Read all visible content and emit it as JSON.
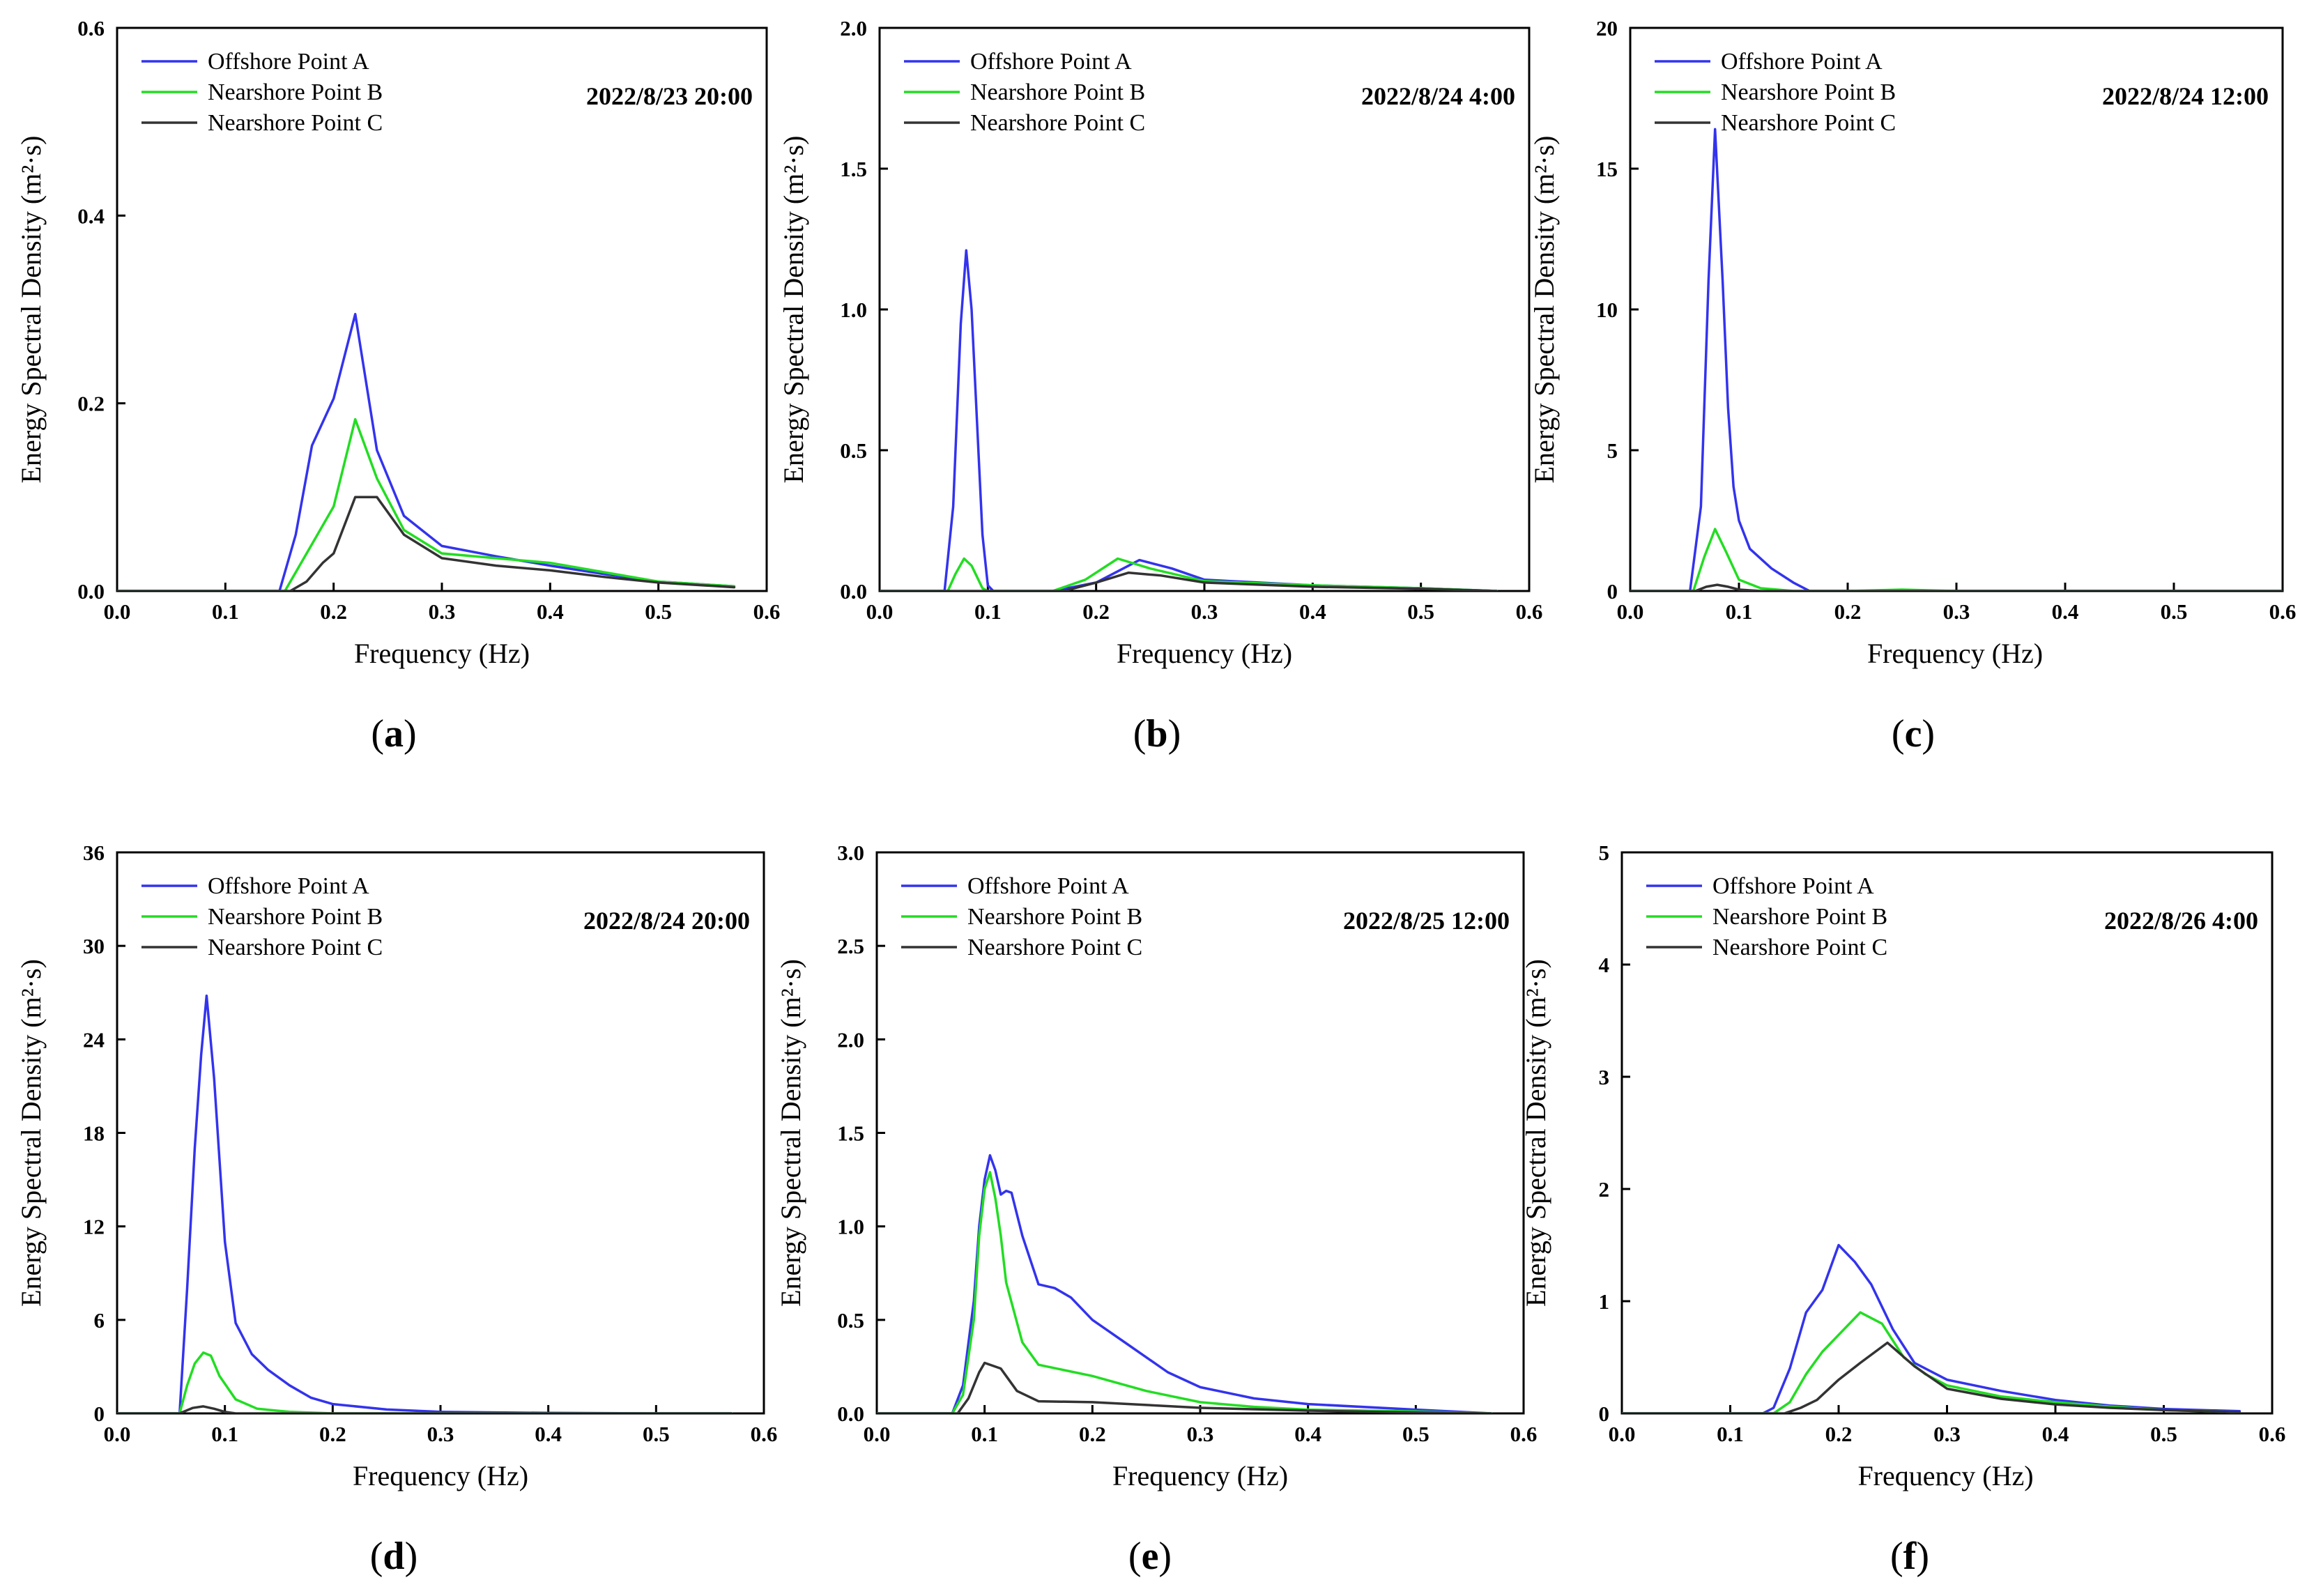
{
  "figure": {
    "panel_letters": [
      "(a)",
      "(b)",
      "(c)",
      "(d)",
      "(e)",
      "(f)"
    ],
    "colors": {
      "offshore_a": "#3333ee",
      "nearshore_b": "#22dd22",
      "nearshore_c": "#333333"
    }
  },
  "chart_data": [
    {
      "type": "line",
      "panel": "(a)",
      "annotation": "2022/8/23 20:00",
      "xlabel": "Frequency (Hz)",
      "ylabel": "Energy Spectral Density (m²·s)",
      "xlim": [
        0.0,
        0.6
      ],
      "ylim": [
        0.0,
        0.6
      ],
      "xticks": [
        "0.0",
        "0.1",
        "0.2",
        "0.3",
        "0.4",
        "0.5",
        "0.6"
      ],
      "yticks": [
        "0.0",
        "0.2",
        "0.4",
        "0.6"
      ],
      "legend": [
        "Offshore Point A",
        "Nearshore Point B",
        "Nearshore Point C"
      ],
      "series": [
        {
          "name": "Offshore Point A",
          "color": "#3333ee",
          "x": [
            0.0,
            0.15,
            0.165,
            0.18,
            0.2,
            0.22,
            0.24,
            0.265,
            0.3,
            0.35,
            0.4,
            0.45,
            0.5,
            0.57
          ],
          "y": [
            0.0,
            0.0,
            0.06,
            0.155,
            0.205,
            0.295,
            0.15,
            0.08,
            0.048,
            0.037,
            0.027,
            0.018,
            0.01,
            0.005
          ]
        },
        {
          "name": "Nearshore Point B",
          "color": "#22dd22",
          "x": [
            0.0,
            0.155,
            0.17,
            0.185,
            0.2,
            0.22,
            0.24,
            0.265,
            0.3,
            0.35,
            0.4,
            0.45,
            0.5,
            0.57
          ],
          "y": [
            0.0,
            0.0,
            0.03,
            0.06,
            0.09,
            0.183,
            0.12,
            0.065,
            0.04,
            0.035,
            0.03,
            0.02,
            0.01,
            0.005
          ]
        },
        {
          "name": "Nearshore Point C",
          "color": "#333333",
          "x": [
            0.0,
            0.16,
            0.175,
            0.19,
            0.2,
            0.22,
            0.24,
            0.265,
            0.3,
            0.35,
            0.4,
            0.45,
            0.5,
            0.57
          ],
          "y": [
            0.0,
            0.0,
            0.01,
            0.03,
            0.04,
            0.1,
            0.1,
            0.06,
            0.035,
            0.027,
            0.022,
            0.015,
            0.009,
            0.004
          ]
        }
      ]
    },
    {
      "type": "line",
      "panel": "(b)",
      "annotation": "2022/8/24 4:00",
      "xlabel": "Frequency (Hz)",
      "ylabel": "Energy Spectral Density (m²·s)",
      "xlim": [
        0.0,
        0.6
      ],
      "ylim": [
        0.0,
        2.0
      ],
      "xticks": [
        "0.0",
        "0.1",
        "0.2",
        "0.3",
        "0.4",
        "0.5",
        "0.6"
      ],
      "yticks": [
        "0.0",
        "0.5",
        "1.0",
        "1.5",
        "2.0"
      ],
      "legend": [
        "Offshore Point A",
        "Nearshore Point B",
        "Nearshore Point C"
      ],
      "series": [
        {
          "name": "Offshore Point A",
          "color": "#3333ee",
          "x": [
            0.0,
            0.06,
            0.068,
            0.075,
            0.08,
            0.085,
            0.09,
            0.095,
            0.1,
            0.105,
            0.16,
            0.2,
            0.24,
            0.27,
            0.3,
            0.4,
            0.5,
            0.57
          ],
          "y": [
            0.0,
            0.0,
            0.3,
            0.95,
            1.21,
            1.0,
            0.6,
            0.2,
            0.02,
            0.0,
            0.0,
            0.03,
            0.11,
            0.08,
            0.04,
            0.02,
            0.01,
            0.0
          ]
        },
        {
          "name": "Nearshore Point B",
          "color": "#22dd22",
          "x": [
            0.0,
            0.063,
            0.07,
            0.078,
            0.085,
            0.095,
            0.1,
            0.16,
            0.19,
            0.22,
            0.25,
            0.3,
            0.4,
            0.5,
            0.57
          ],
          "y": [
            0.0,
            0.0,
            0.06,
            0.115,
            0.09,
            0.01,
            0.0,
            0.0,
            0.04,
            0.115,
            0.08,
            0.035,
            0.02,
            0.01,
            0.0
          ]
        },
        {
          "name": "Nearshore Point C",
          "color": "#333333",
          "x": [
            0.0,
            0.17,
            0.2,
            0.23,
            0.26,
            0.3,
            0.4,
            0.5,
            0.57
          ],
          "y": [
            0.0,
            0.0,
            0.03,
            0.065,
            0.055,
            0.03,
            0.015,
            0.008,
            0.0
          ]
        }
      ]
    },
    {
      "type": "line",
      "panel": "(c)",
      "annotation": "2022/8/24 12:00",
      "xlabel": "Frequency (Hz)",
      "ylabel": "Energy Spectral Density (m²·s)",
      "xlim": [
        0.0,
        0.6
      ],
      "ylim": [
        0,
        20
      ],
      "xticks": [
        "0.0",
        "0.1",
        "0.2",
        "0.3",
        "0.4",
        "0.5",
        "0.6"
      ],
      "yticks": [
        "0",
        "5",
        "10",
        "15",
        "20"
      ],
      "legend": [
        "Offshore Point A",
        "Nearshore Point B",
        "Nearshore Point C"
      ],
      "series": [
        {
          "name": "Offshore Point A",
          "color": "#3333ee",
          "x": [
            0.0,
            0.055,
            0.065,
            0.072,
            0.078,
            0.085,
            0.09,
            0.095,
            0.1,
            0.11,
            0.13,
            0.15,
            0.165,
            0.2,
            0.3,
            0.6
          ],
          "y": [
            0.0,
            0.0,
            3.0,
            11.0,
            16.4,
            11.0,
            6.5,
            3.7,
            2.5,
            1.5,
            0.8,
            0.3,
            0.0,
            0.0,
            0.0,
            0.0
          ]
        },
        {
          "name": "Nearshore Point B",
          "color": "#22dd22",
          "x": [
            0.0,
            0.058,
            0.068,
            0.078,
            0.088,
            0.1,
            0.12,
            0.15,
            0.2,
            0.25,
            0.3,
            0.6
          ],
          "y": [
            0.0,
            0.0,
            1.2,
            2.2,
            1.4,
            0.4,
            0.1,
            0.0,
            0.0,
            0.05,
            0.0,
            0.0
          ]
        },
        {
          "name": "Nearshore Point C",
          "color": "#333333",
          "x": [
            0.0,
            0.06,
            0.07,
            0.08,
            0.09,
            0.1,
            0.12,
            0.6
          ],
          "y": [
            0.0,
            0.0,
            0.15,
            0.22,
            0.15,
            0.05,
            0.0,
            0.0
          ]
        }
      ]
    },
    {
      "type": "line",
      "panel": "(d)",
      "annotation": "2022/8/24 20:00",
      "xlabel": "Frequency (Hz)",
      "ylabel": "Energy Spectral Density (m²·s)",
      "xlim": [
        0.0,
        0.6
      ],
      "ylim": [
        0,
        36
      ],
      "xticks": [
        "0.0",
        "0.1",
        "0.2",
        "0.3",
        "0.4",
        "0.5",
        "0.6"
      ],
      "yticks": [
        "0",
        "6",
        "12",
        "18",
        "24",
        "30",
        "36"
      ],
      "legend": [
        "Offshore Point A",
        "Nearshore Point B",
        "Nearshore Point C"
      ],
      "series": [
        {
          "name": "Offshore Point A",
          "color": "#3333ee",
          "x": [
            0.0,
            0.058,
            0.065,
            0.072,
            0.078,
            0.083,
            0.09,
            0.1,
            0.11,
            0.125,
            0.14,
            0.16,
            0.18,
            0.2,
            0.25,
            0.3,
            0.4,
            0.5,
            0.57
          ],
          "y": [
            0.0,
            0.0,
            8.0,
            17.0,
            23.0,
            26.8,
            21.5,
            11.0,
            5.8,
            3.8,
            2.8,
            1.8,
            1.0,
            0.6,
            0.25,
            0.1,
            0.03,
            0.0,
            0.0
          ]
        },
        {
          "name": "Nearshore Point B",
          "color": "#22dd22",
          "x": [
            0.0,
            0.058,
            0.065,
            0.072,
            0.08,
            0.087,
            0.095,
            0.11,
            0.13,
            0.16,
            0.2,
            0.3,
            0.57
          ],
          "y": [
            0.0,
            0.0,
            1.8,
            3.2,
            3.9,
            3.7,
            2.4,
            0.9,
            0.3,
            0.1,
            0.0,
            0.0,
            0.0
          ]
        },
        {
          "name": "Nearshore Point C",
          "color": "#333333",
          "x": [
            0.0,
            0.058,
            0.07,
            0.08,
            0.09,
            0.1,
            0.11,
            0.57
          ],
          "y": [
            0.0,
            0.0,
            0.35,
            0.45,
            0.3,
            0.1,
            0.0,
            0.0
          ]
        }
      ]
    },
    {
      "type": "line",
      "panel": "(e)",
      "annotation": "2022/8/25 12:00",
      "xlabel": "Frequency (Hz)",
      "ylabel": "Energy Spectral Density (m²·s)",
      "xlim": [
        0.0,
        0.6
      ],
      "ylim": [
        0.0,
        3.0
      ],
      "xticks": [
        "0.0",
        "0.1",
        "0.2",
        "0.3",
        "0.4",
        "0.5",
        "0.6"
      ],
      "yticks": [
        "0.0",
        "0.5",
        "1.0",
        "1.5",
        "2.0",
        "2.5",
        "3.0"
      ],
      "legend": [
        "Offshore Point A",
        "Nearshore Point B",
        "Nearshore Point C"
      ],
      "series": [
        {
          "name": "Offshore Point A",
          "color": "#3333ee",
          "x": [
            0.0,
            0.07,
            0.08,
            0.09,
            0.095,
            0.1,
            0.105,
            0.11,
            0.115,
            0.12,
            0.125,
            0.135,
            0.15,
            0.165,
            0.18,
            0.2,
            0.23,
            0.27,
            0.3,
            0.35,
            0.4,
            0.5,
            0.57
          ],
          "y": [
            0.0,
            0.0,
            0.15,
            0.6,
            1.0,
            1.25,
            1.38,
            1.3,
            1.17,
            1.19,
            1.18,
            0.95,
            0.69,
            0.67,
            0.62,
            0.5,
            0.38,
            0.22,
            0.14,
            0.08,
            0.05,
            0.02,
            0.0
          ]
        },
        {
          "name": "Nearshore Point B",
          "color": "#22dd22",
          "x": [
            0.0,
            0.07,
            0.08,
            0.09,
            0.095,
            0.1,
            0.105,
            0.11,
            0.115,
            0.12,
            0.135,
            0.15,
            0.2,
            0.25,
            0.3,
            0.35,
            0.4,
            0.5,
            0.57
          ],
          "y": [
            0.0,
            0.0,
            0.1,
            0.5,
            0.95,
            1.2,
            1.29,
            1.15,
            0.95,
            0.7,
            0.38,
            0.26,
            0.2,
            0.12,
            0.06,
            0.035,
            0.02,
            0.01,
            0.0
          ]
        },
        {
          "name": "Nearshore Point C",
          "color": "#333333",
          "x": [
            0.0,
            0.075,
            0.085,
            0.095,
            0.1,
            0.11,
            0.115,
            0.12,
            0.13,
            0.15,
            0.2,
            0.25,
            0.3,
            0.4,
            0.5,
            0.57
          ],
          "y": [
            0.0,
            0.0,
            0.08,
            0.22,
            0.27,
            0.25,
            0.24,
            0.2,
            0.12,
            0.065,
            0.06,
            0.045,
            0.03,
            0.015,
            0.005,
            0.0
          ]
        }
      ]
    },
    {
      "type": "line",
      "panel": "(f)",
      "annotation": "2022/8/26 4:00",
      "xlabel": "Frequency (Hz)",
      "ylabel": "Energy Spectral Density (m²·s)",
      "xlim": [
        0.0,
        0.6
      ],
      "ylim": [
        0,
        5
      ],
      "xticks": [
        "0.0",
        "0.1",
        "0.2",
        "0.3",
        "0.4",
        "0.5",
        "0.6"
      ],
      "yticks": [
        "0",
        "1",
        "2",
        "3",
        "4",
        "5"
      ],
      "legend": [
        "Offshore Point A",
        "Nearshore Point B",
        "Nearshore Point C"
      ],
      "series": [
        {
          "name": "Offshore Point A",
          "color": "#3333ee",
          "x": [
            0.0,
            0.13,
            0.14,
            0.155,
            0.17,
            0.185,
            0.2,
            0.215,
            0.23,
            0.25,
            0.27,
            0.3,
            0.35,
            0.4,
            0.45,
            0.5,
            0.57
          ],
          "y": [
            0.0,
            0.0,
            0.05,
            0.4,
            0.9,
            1.1,
            1.5,
            1.35,
            1.15,
            0.75,
            0.45,
            0.3,
            0.2,
            0.12,
            0.07,
            0.04,
            0.02
          ]
        },
        {
          "name": "Nearshore Point B",
          "color": "#22dd22",
          "x": [
            0.0,
            0.14,
            0.155,
            0.17,
            0.185,
            0.2,
            0.22,
            0.24,
            0.26,
            0.28,
            0.3,
            0.35,
            0.4,
            0.45,
            0.5,
            0.57
          ],
          "y": [
            0.0,
            0.0,
            0.1,
            0.35,
            0.55,
            0.7,
            0.9,
            0.8,
            0.5,
            0.35,
            0.25,
            0.15,
            0.1,
            0.06,
            0.03,
            0.01
          ]
        },
        {
          "name": "Nearshore Point C",
          "color": "#333333",
          "x": [
            0.0,
            0.15,
            0.165,
            0.18,
            0.2,
            0.22,
            0.245,
            0.27,
            0.3,
            0.35,
            0.4,
            0.45,
            0.5,
            0.57
          ],
          "y": [
            0.0,
            0.0,
            0.05,
            0.12,
            0.3,
            0.45,
            0.63,
            0.42,
            0.22,
            0.13,
            0.08,
            0.05,
            0.03,
            0.01
          ]
        }
      ]
    }
  ]
}
